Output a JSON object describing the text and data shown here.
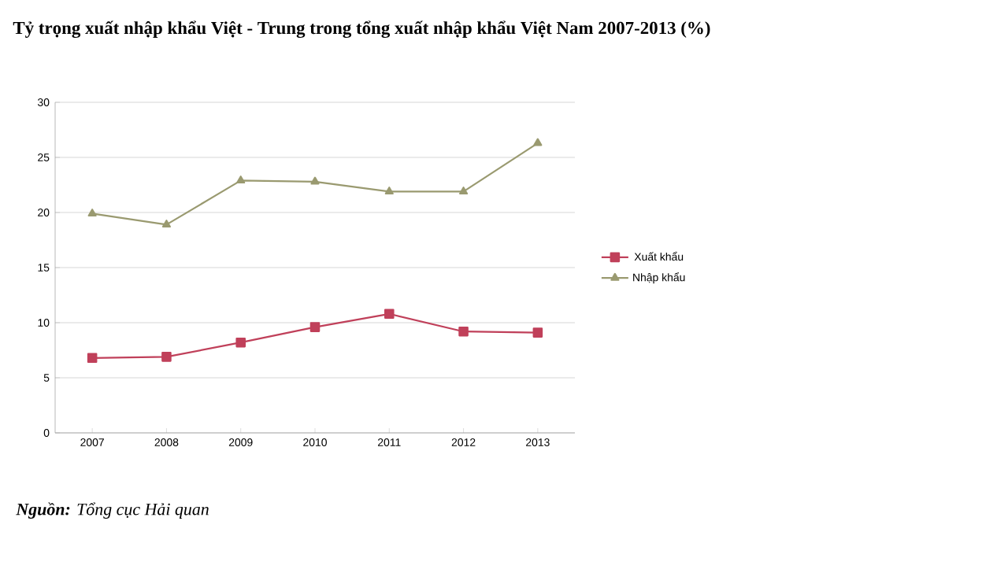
{
  "chart_data": {
    "type": "line",
    "title": "Tỷ trọng xuất nhập khẩu Việt - Trung trong tổng xuất nhập khẩu Việt Nam 2007-2013 (%)",
    "annotations": [
      "**Nguồn:** Tổng cục Hải quan"
    ],
    "categories": [
      "2007",
      "2008",
      "2009",
      "2010",
      "2011",
      "2012",
      "2013"
    ],
    "series": [
      {
        "name": "Xuất khẩu",
        "color": "#c0405a",
        "marker": "square",
        "values": [
          6.8,
          6.9,
          8.2,
          9.6,
          10.8,
          9.2,
          9.1
        ]
      },
      {
        "name": "Nhập khẩu",
        "color": "#9a9a70",
        "marker": "triangle",
        "values": [
          19.9,
          18.9,
          22.9,
          22.8,
          21.9,
          21.9,
          26.3
        ]
      }
    ],
    "ylim": [
      0,
      30
    ],
    "yticks": [
      0,
      5,
      10,
      15,
      20,
      25,
      30
    ],
    "grid": "y",
    "legend": "right",
    "line_style": "solid"
  }
}
